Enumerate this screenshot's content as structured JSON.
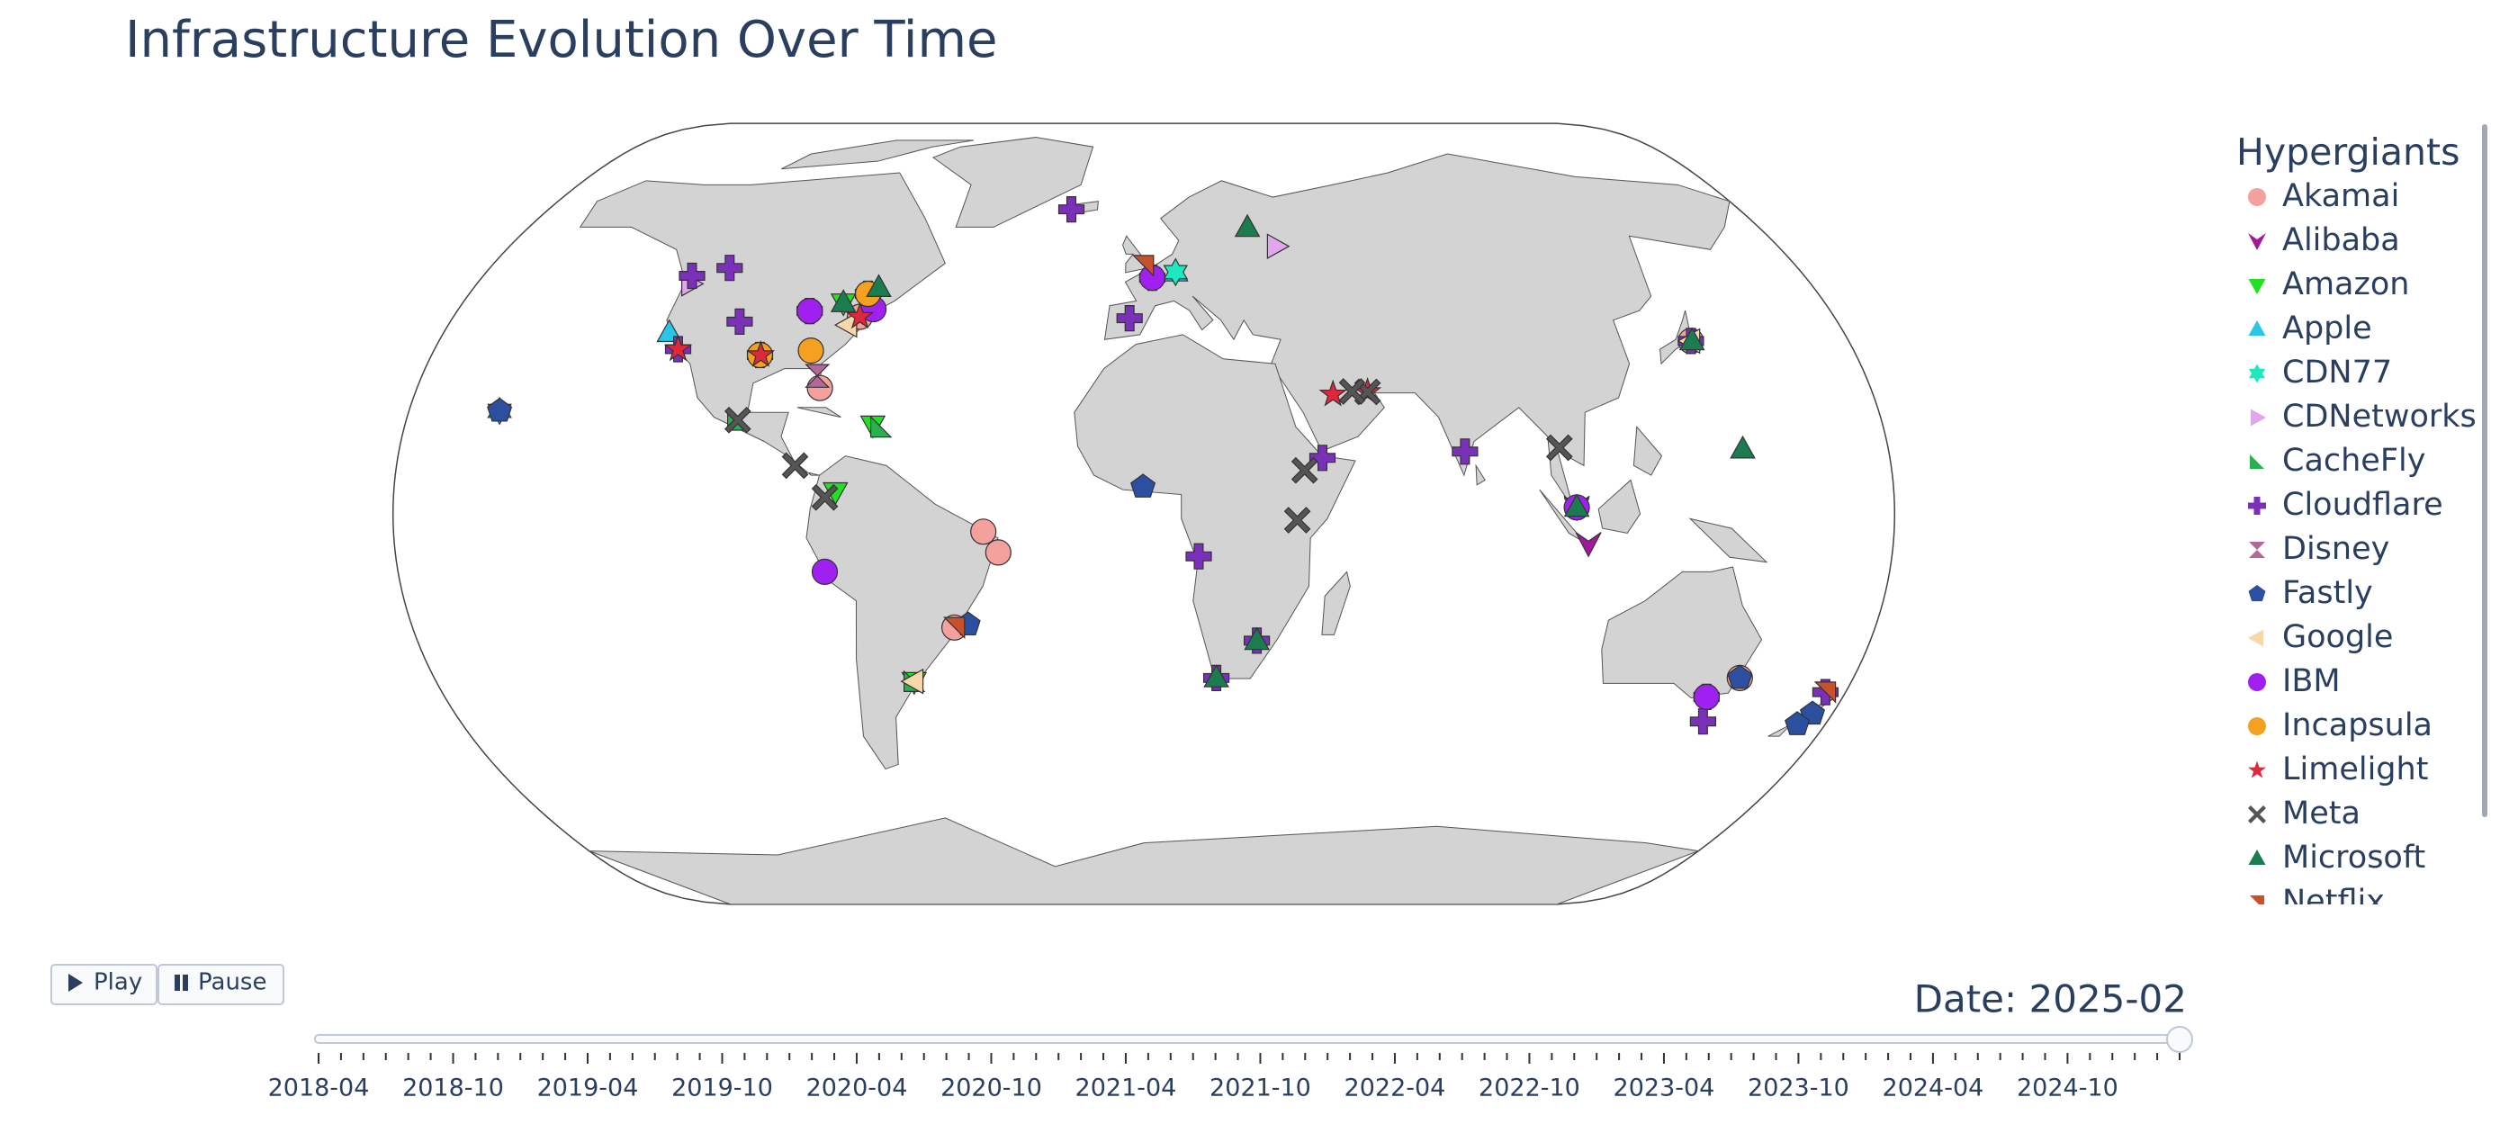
{
  "chart_data": {
    "type": "scatter_geo",
    "title": "Infrastructure Evolution Over Time",
    "legend_title": "Hypergiants",
    "legend_position": "right",
    "series": [
      {
        "name": "Akamai",
        "color": "#f4a09c",
        "symbol": "circle",
        "lon": [
          -74,
          -80.2,
          -46.6,
          -35,
          -38.5,
          139.7,
          -87.6,
          151.2
        ],
        "lat": [
          40.7,
          26,
          -23.5,
          -8,
          -3.7,
          35.7,
          41.9,
          -33.9
        ]
      },
      {
        "name": "Alibaba",
        "color": "#a0189d",
        "symbol": "y-down",
        "lon": [
          106.8,
          103.8
        ],
        "lat": [
          -6.2,
          1.3
        ]
      },
      {
        "name": "Amazon",
        "color": "#22e022",
        "symbol": "triangle-down",
        "lon": [
          -74,
          -66,
          103.8,
          -58.4,
          -79.4
        ],
        "lat": [
          4.6,
          18.4,
          1.35,
          -34.6,
          43.6
        ]
      },
      {
        "name": "Apple",
        "color": "#28c6e8",
        "symbol": "triangle-up",
        "lon": [
          -122,
          8.7
        ],
        "lat": [
          37.4,
          50.1
        ]
      },
      {
        "name": "CDN77",
        "color": "#1de8c0",
        "symbol": "hexagram",
        "lon": [
          -157.8,
          8.7
        ],
        "lat": [
          21.3,
          50.1
        ]
      },
      {
        "name": "CDNetworks",
        "color": "#e0a6f0",
        "symbol": "triangle-right",
        "lon": [
          37.6,
          -122.3
        ],
        "lat": [
          55.7,
          47.6
        ]
      },
      {
        "name": "CacheFly",
        "color": "#2bb050",
        "symbol": "triangle-sw",
        "lon": [
          -64,
          -58.4,
          -99.1
        ],
        "lat": [
          18,
          -34.6,
          19.4
        ]
      },
      {
        "name": "Cloudflare",
        "color": "#7a30b8",
        "symbol": "cross",
        "lon": [
          -21.9,
          -97,
          -87.6,
          -104.9,
          -118.2,
          -114,
          -73.6,
          2.3,
          28,
          18.4,
          13.2,
          43.1,
          144.9,
          174.8,
          147.3,
          139.7,
          77.6,
          -3.7,
          -123.1
        ],
        "lat": [
          64.1,
          32.8,
          41.9,
          39.7,
          34,
          51,
          45.5,
          48.9,
          -26.2,
          -33.9,
          -8.8,
          11.6,
          -37.8,
          -36.8,
          -42.9,
          35.7,
          12.9,
          40.4,
          49.3
        ]
      },
      {
        "name": "Disney",
        "color": "#b4679a",
        "symbol": "hourglass",
        "lon": [
          -81.4
        ],
        "lat": [
          28.5
        ]
      },
      {
        "name": "Fastly",
        "color": "#2c4fa0",
        "symbol": "pentagon",
        "lon": [
          -157.8,
          174.8,
          172.6,
          151.2,
          -43.2,
          -0.2,
          -96.8
        ],
        "lat": [
          21.3,
          -41.3,
          -43.5,
          -33.9,
          -22.9,
          5.6,
          32.8
        ]
      },
      {
        "name": "Google",
        "color": "#f8d8a8",
        "symbol": "triangle-left",
        "lon": [
          -58.4,
          139.7,
          -76.6
        ],
        "lat": [
          -34.6,
          35.7,
          39
        ]
      },
      {
        "name": "IBM",
        "color": "#a020f0",
        "symbol": "circle",
        "lon": [
          -71,
          -77,
          103.8,
          144.9,
          2.3,
          -87.6
        ],
        "lat": [
          42.3,
          -12,
          1.35,
          -37.8,
          48.9,
          41.9
        ]
      },
      {
        "name": "Incapsula",
        "color": "#f4a020",
        "symbol": "circle",
        "lon": [
          -97,
          -84.4,
          -73.6
        ],
        "lat": [
          32.8,
          33.7,
          45.5
        ]
      },
      {
        "name": "Limelight",
        "color": "#e0283c",
        "symbol": "star",
        "lon": [
          -118.2,
          -96.8,
          55.3,
          46.7,
          -74
        ],
        "lat": [
          34,
          32.8,
          25.2,
          24.7,
          40.7
        ]
      },
      {
        "name": "Meta",
        "color": "#555555",
        "symbol": "x",
        "lon": [
          -84,
          55.3,
          -76.5,
          38.7,
          36.8,
          -99.1,
          100.5,
          51.5
        ],
        "lat": [
          10,
          25.2,
          3.4,
          9,
          -1.3,
          19.4,
          13.7,
          25.3
        ]
      },
      {
        "name": "Microsoft",
        "color": "#1b7d4f",
        "symbol": "triangle-up",
        "lon": [
          -79.4,
          144.8,
          -71.2,
          18.4,
          28,
          103.8,
          140,
          30.3
        ],
        "lat": [
          43.6,
          13.4,
          46.8,
          -33.9,
          -26.2,
          1.35,
          35.7,
          59.9
        ]
      },
      {
        "name": "Netflix",
        "color": "#c8502a",
        "symbol": "triangle-ne",
        "lon": [
          -46.6,
          -0.1,
          174.8
        ],
        "lat": [
          -23.5,
          51.5,
          -36.8
        ]
      }
    ],
    "buttons": [
      "Play",
      "Pause"
    ],
    "current_label": "Date: 2025-02",
    "slider_steps": [
      "2018-04",
      null,
      null,
      null,
      null,
      null,
      "2018-10",
      null,
      null,
      null,
      null,
      null,
      "2019-04",
      null,
      null,
      null,
      null,
      null,
      "2019-10",
      null,
      null,
      null,
      null,
      null,
      "2020-04",
      null,
      null,
      null,
      null,
      null,
      "2020-10",
      null,
      null,
      null,
      null,
      null,
      "2021-04",
      null,
      null,
      null,
      null,
      null,
      "2021-10",
      null,
      null,
      null,
      null,
      null,
      "2022-04",
      null,
      null,
      null,
      null,
      null,
      "2022-10",
      null,
      null,
      null,
      null,
      null,
      "2023-04",
      null,
      null,
      null,
      null,
      null,
      "2023-10",
      null,
      null,
      null,
      null,
      null,
      "2024-04",
      null,
      null,
      null,
      null,
      null,
      "2024-10",
      null,
      null,
      null,
      null
    ]
  }
}
